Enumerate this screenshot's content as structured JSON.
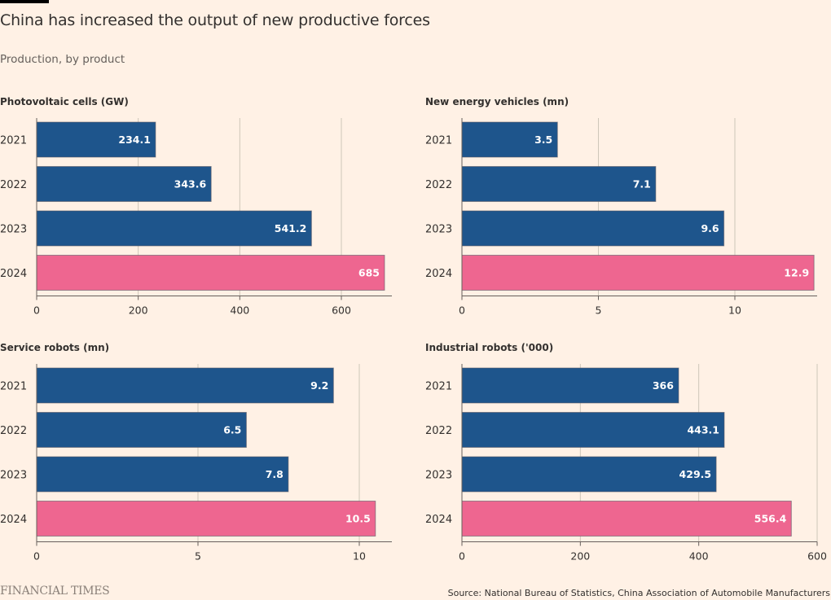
{
  "header": {
    "title": "China has increased the output of new productive forces",
    "subtitle": "Production, by product"
  },
  "colors": {
    "bar": "#1e558c",
    "highlight": "#ee6690",
    "background": "#fff1e5",
    "grid": "#cec6b9",
    "axis": "#66605c",
    "bar_label": "#ffffff"
  },
  "chart_data": [
    {
      "type": "bar",
      "orientation": "horizontal",
      "title": "Photovoltaic cells (GW)",
      "categories": [
        "2021",
        "2022",
        "2023",
        "2024"
      ],
      "values": [
        234.1,
        343.6,
        541.2,
        685
      ],
      "labels": [
        "234.1",
        "343.6",
        "541.2",
        "685"
      ],
      "highlight": [
        false,
        false,
        false,
        true
      ],
      "xlim": [
        0,
        700
      ],
      "xticks": [
        0,
        200,
        400,
        600
      ],
      "xtick_labels": [
        "0",
        "200",
        "400",
        "600"
      ],
      "grid": true
    },
    {
      "type": "bar",
      "orientation": "horizontal",
      "title": "New energy vehicles (mn)",
      "categories": [
        "2021",
        "2022",
        "2023",
        "2024"
      ],
      "values": [
        3.5,
        7.1,
        9.6,
        12.9
      ],
      "labels": [
        "3.5",
        "7.1",
        "9.6",
        "12.9"
      ],
      "highlight": [
        false,
        false,
        false,
        true
      ],
      "xlim": [
        0,
        13
      ],
      "xticks": [
        0,
        5,
        10
      ],
      "xtick_labels": [
        "0",
        "5",
        "10"
      ],
      "grid": true
    },
    {
      "type": "bar",
      "orientation": "horizontal",
      "title": "Service robots (mn)",
      "categories": [
        "2021",
        "2022",
        "2023",
        "2024"
      ],
      "values": [
        9.2,
        6.5,
        7.8,
        10.5
      ],
      "labels": [
        "9.2",
        "6.5",
        "7.8",
        "10.5"
      ],
      "highlight": [
        false,
        false,
        false,
        true
      ],
      "xlim": [
        0,
        11
      ],
      "xticks": [
        0,
        5,
        10
      ],
      "xtick_labels": [
        "0",
        "5",
        "10"
      ],
      "grid": true
    },
    {
      "type": "bar",
      "orientation": "horizontal",
      "title": "Industrial robots ('000)",
      "categories": [
        "2021",
        "2022",
        "2023",
        "2024"
      ],
      "values": [
        366,
        443.1,
        429.5,
        556.4
      ],
      "labels": [
        "366",
        "443.1",
        "429.5",
        "556.4"
      ],
      "highlight": [
        false,
        false,
        false,
        true
      ],
      "xlim": [
        0,
        600
      ],
      "xticks": [
        0,
        200,
        400,
        600
      ],
      "xtick_labels": [
        "0",
        "200",
        "400",
        "600"
      ],
      "grid": true
    }
  ],
  "footer": {
    "logo": "FINANCIAL TIMES",
    "source": "Source: National Bureau of Statistics, China Association of Automobile Manufacturers"
  }
}
